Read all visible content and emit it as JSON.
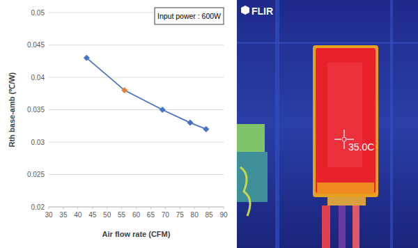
{
  "chart_data": {
    "type": "line",
    "annotation": "Input power : 600W",
    "x_label": "Air flow rate (CFM)",
    "y_label": "Rth base-amb (℃/W)",
    "x": [
      43,
      56,
      69,
      78.5,
      84
    ],
    "values": [
      0.043,
      0.038,
      0.035,
      0.033,
      0.032
    ],
    "color": "#4472c4",
    "colors": [
      "#4472c4",
      "#ed7d31",
      "#4472c4",
      "#4472c4",
      "#4472c4"
    ],
    "marker": "diamond",
    "line_style": "solid",
    "xlim": [
      30,
      90
    ],
    "xticks": [
      30,
      35,
      40,
      45,
      50,
      55,
      60,
      65,
      70,
      75,
      80,
      85,
      90
    ],
    "ylim": [
      0.02,
      0.05
    ],
    "yticks": [
      0.02,
      0.025,
      0.03,
      0.035,
      0.04,
      0.045,
      0.05
    ],
    "grid": true
  },
  "thermal_image": {
    "logo": "FLIR",
    "spot_temperature": "35.0C"
  }
}
